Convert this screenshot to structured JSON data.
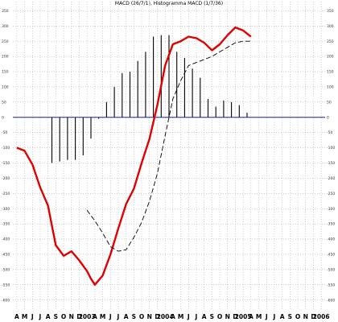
{
  "chart_data": {
    "type": "line",
    "title": "MACD (26/7/1), Histogramma MACD (1/7/36)",
    "xlabel": "",
    "ylabel": "",
    "ylim": [
      -630,
      380
    ],
    "grid": true,
    "y_ticks": [
      350,
      300,
      250,
      200,
      150,
      100,
      50,
      0,
      -50,
      -100,
      -150,
      -200,
      -250,
      -300,
      -350,
      -400,
      -450,
      -500,
      -550,
      -600
    ],
    "x_ticks": [
      "A",
      "M",
      "J",
      "J",
      "A",
      "S",
      "O",
      "N",
      "D",
      "2003",
      "A",
      "M",
      "J",
      "J",
      "A",
      "S",
      "O",
      "N",
      "D",
      "2004",
      "A",
      "M",
      "J",
      "J",
      "A",
      "S",
      "O",
      "N",
      "D",
      "2005",
      "A",
      "M",
      "J",
      "J",
      "A",
      "S",
      "O",
      "N",
      "D",
      "2006"
    ],
    "zero_line": 0,
    "colors": {
      "macd": "#e00000",
      "signal": "#000000",
      "histogram": "#000000",
      "zero_line": "#1a1aa0",
      "grid": "#9a9a9a"
    },
    "series": [
      {
        "name": "",
        "style": "solid-thick",
        "x": [
          0,
          1,
          2,
          3,
          4,
          5,
          6,
          7,
          8,
          9,
          9.5,
          10,
          11,
          12,
          13,
          14,
          15,
          16,
          17,
          18,
          19,
          20,
          21,
          22,
          23,
          24,
          25,
          26,
          27,
          28,
          29,
          30
        ],
        "values": [
          -100,
          -110,
          -155,
          -230,
          -290,
          -420,
          -455,
          -440,
          -470,
          -505,
          -530,
          -550,
          -520,
          -450,
          -365,
          -285,
          -235,
          -150,
          -70,
          40,
          170,
          240,
          250,
          265,
          260,
          245,
          220,
          240,
          270,
          295,
          285,
          265
        ]
      },
      {
        "name": "",
        "style": "dashed",
        "x": [
          9,
          10,
          11,
          12,
          13,
          14,
          15,
          16,
          17,
          18,
          19,
          20,
          21,
          22,
          23,
          24,
          25,
          26,
          27,
          28,
          29,
          30
        ],
        "values": [
          -305,
          -340,
          -380,
          -425,
          -440,
          -435,
          -395,
          -345,
          -275,
          -185,
          -60,
          60,
          120,
          170,
          180,
          190,
          200,
          215,
          230,
          245,
          250,
          250
        ]
      }
    ],
    "histogram": {
      "x": [
        4.5,
        5.5,
        6.5,
        7.5,
        8.5,
        9.5,
        10.5,
        11.5,
        12.5,
        13.5,
        14.5,
        15.5,
        16.5,
        17.5,
        18.5,
        19.5,
        20.5,
        21.5,
        22.5,
        23.5,
        24.5,
        25.5,
        26.5,
        27.5,
        28.5,
        29.5
      ],
      "values": [
        -150,
        -145,
        -140,
        -140,
        -125,
        -70,
        -5,
        50,
        100,
        145,
        150,
        185,
        215,
        265,
        270,
        270,
        215,
        195,
        160,
        130,
        60,
        35,
        55,
        50,
        40,
        15
      ]
    },
    "x_index_note": ""
  }
}
